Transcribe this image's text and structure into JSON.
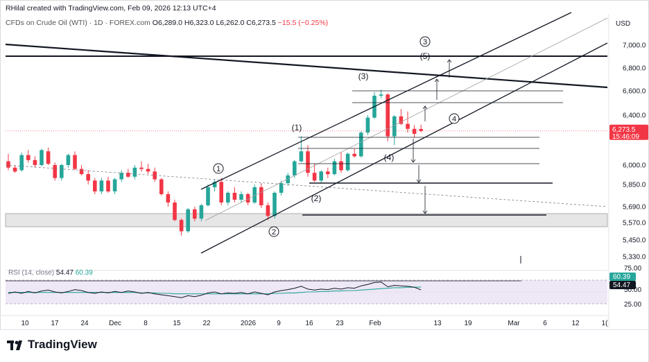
{
  "header": {
    "created_by": "RHilal created with TradingView.com, Feb 09, 2026 12:13 UTC+4"
  },
  "symbol_line": {
    "name": "CFDs on Crude Oil (WTI) · 1D · FOREX.com",
    "open": "O6,289.0",
    "high": "H6,323.0",
    "low": "L6,262.0",
    "close": "C6,273.5",
    "change": "−15.5 (−0.25%)"
  },
  "currency": "USD",
  "price_axis": {
    "ticks": [
      "7,000.0",
      "6,800.0",
      "6,600.0",
      "6,400.0",
      "6,000.0",
      "5,850.0",
      "5,690.0",
      "5,570.0",
      "5,450.0",
      "5,330.0"
    ],
    "last_price": "6,273.5",
    "countdown": "15:46:09"
  },
  "rsi": {
    "label": "RSI (14, close)",
    "value": "54.47",
    "ma_value": "60.39",
    "ticks": [
      "75.00",
      "50.00",
      "25.00"
    ]
  },
  "time_axis": {
    "ticks": [
      "10",
      "17",
      "24",
      "Dec",
      "8",
      "15",
      "22",
      "2026",
      "9",
      "16",
      "23",
      "Feb",
      "13",
      "19",
      "Mar",
      "6",
      "12",
      "1("
    ]
  },
  "annotations": {
    "circle_1": "1",
    "circle_2": "2",
    "circle_3": "3",
    "circle_4": "4",
    "wave_1": "(1)",
    "wave_2": "(2)",
    "wave_3": "(3)",
    "wave_4": "(4)",
    "wave_5": "(5)"
  },
  "colors": {
    "up": "#26a69a",
    "down": "#f23645",
    "rsi_line": "#131722",
    "rsi_ma": "#26a69a",
    "rsi_band": "#ede7f6"
  },
  "brand": "TradingView",
  "chart_data": {
    "type": "candlestick",
    "title": "CFDs on Crude Oil (WTI) · 1D · FOREX.com",
    "currency": "USD",
    "ohlc": [
      [
        6030,
        6090,
        5960,
        5980
      ],
      [
        5980,
        6000,
        5940,
        5950
      ],
      [
        5960,
        6100,
        5950,
        6080
      ],
      [
        6080,
        6120,
        6020,
        6040
      ],
      [
        6040,
        6070,
        5980,
        6000
      ],
      [
        6000,
        6130,
        5990,
        6120
      ],
      [
        6110,
        6140,
        6000,
        6010
      ],
      [
        6000,
        6020,
        5880,
        5900
      ],
      [
        5900,
        6010,
        5880,
        6000
      ],
      [
        6000,
        6090,
        5980,
        6080
      ],
      [
        6080,
        6110,
        5960,
        5970
      ],
      [
        5970,
        6000,
        5920,
        5930
      ],
      [
        5930,
        5960,
        5850,
        5880
      ],
      [
        5880,
        5900,
        5780,
        5800
      ],
      [
        5800,
        5900,
        5780,
        5880
      ],
      [
        5880,
        5910,
        5790,
        5800
      ],
      [
        5800,
        5900,
        5780,
        5890
      ],
      [
        5890,
        5960,
        5870,
        5940
      ],
      [
        5940,
        5970,
        5900,
        5910
      ],
      [
        5910,
        6000,
        5890,
        5980
      ],
      [
        5980,
        6030,
        5950,
        5970
      ],
      [
        5970,
        6010,
        5930,
        5950
      ],
      [
        5950,
        5980,
        5870,
        5890
      ],
      [
        5890,
        5900,
        5770,
        5780
      ],
      [
        5780,
        5800,
        5690,
        5720
      ],
      [
        5720,
        5740,
        5580,
        5590
      ],
      [
        5590,
        5600,
        5480,
        5510
      ],
      [
        5510,
        5680,
        5500,
        5670
      ],
      [
        5670,
        5690,
        5580,
        5600
      ],
      [
        5600,
        5710,
        5580,
        5700
      ],
      [
        5700,
        5850,
        5690,
        5830
      ],
      [
        5830,
        5890,
        5800,
        5870
      ],
      [
        5870,
        5900,
        5700,
        5720
      ],
      [
        5720,
        5800,
        5700,
        5790
      ],
      [
        5790,
        5830,
        5720,
        5740
      ],
      [
        5740,
        5800,
        5720,
        5780
      ],
      [
        5780,
        5790,
        5700,
        5720
      ],
      [
        5720,
        5850,
        5710,
        5830
      ],
      [
        5830,
        5860,
        5680,
        5700
      ],
      [
        5700,
        5720,
        5590,
        5620
      ],
      [
        5620,
        5800,
        5600,
        5790
      ],
      [
        5790,
        5880,
        5770,
        5860
      ],
      [
        5860,
        5940,
        5840,
        5920
      ],
      [
        5920,
        6040,
        5900,
        6030
      ],
      [
        6030,
        6230,
        6020,
        6110
      ],
      [
        6110,
        6160,
        5910,
        5940
      ],
      [
        5940,
        6010,
        5870,
        5880
      ],
      [
        5880,
        5960,
        5860,
        5950
      ],
      [
        5950,
        5980,
        5900,
        5930
      ],
      [
        5930,
        6050,
        5920,
        6030
      ],
      [
        6030,
        6100,
        5940,
        5960
      ],
      [
        5960,
        6100,
        5950,
        6090
      ],
      [
        6090,
        6130,
        6060,
        6070
      ],
      [
        6070,
        6270,
        6060,
        6260
      ],
      [
        6260,
        6400,
        6240,
        6380
      ],
      [
        6380,
        6590,
        6370,
        6560
      ],
      [
        6560,
        6610,
        6540,
        6570
      ],
      [
        6570,
        6580,
        6190,
        6230
      ],
      [
        6230,
        6400,
        6160,
        6390
      ],
      [
        6390,
        6450,
        6320,
        6330
      ],
      [
        6330,
        6430,
        6260,
        6290
      ],
      [
        6290,
        6320,
        6220,
        6250
      ],
      [
        6289,
        6323,
        6262,
        6273.5
      ]
    ],
    "levels": [
      5850,
      5600,
      6380,
      6510,
      6580
    ],
    "ylim": [
      5330,
      7050
    ],
    "rsi": {
      "values": [
        47,
        50,
        47,
        51,
        48,
        52,
        54,
        50,
        48,
        51,
        55,
        53,
        49,
        47,
        50,
        48,
        51,
        49,
        52,
        50,
        47,
        49,
        46,
        44,
        42,
        40,
        38,
        42,
        40,
        43,
        48,
        50,
        46,
        48,
        47,
        49,
        46,
        50,
        47,
        44,
        50,
        53,
        55,
        58,
        62,
        56,
        54,
        56,
        55,
        58,
        56,
        59,
        58,
        63,
        66,
        70,
        71,
        61,
        64,
        63,
        62,
        60,
        54.47
      ],
      "ma": [
        49,
        49,
        49,
        49,
        49,
        49,
        49,
        49,
        49,
        49,
        49,
        49,
        49,
        49,
        49,
        49,
        49,
        49,
        49,
        49,
        48,
        48,
        48,
        47,
        47,
        46,
        46,
        46,
        46,
        46,
        46,
        46,
        46,
        46,
        46,
        46,
        46,
        46,
        46,
        46,
        47,
        47,
        48,
        48,
        49,
        50,
        50,
        51,
        51,
        52,
        52,
        53,
        53,
        54,
        55,
        56,
        57,
        58,
        59,
        59,
        60,
        60,
        60.39
      ],
      "ylim": [
        0,
        100
      ]
    }
  }
}
